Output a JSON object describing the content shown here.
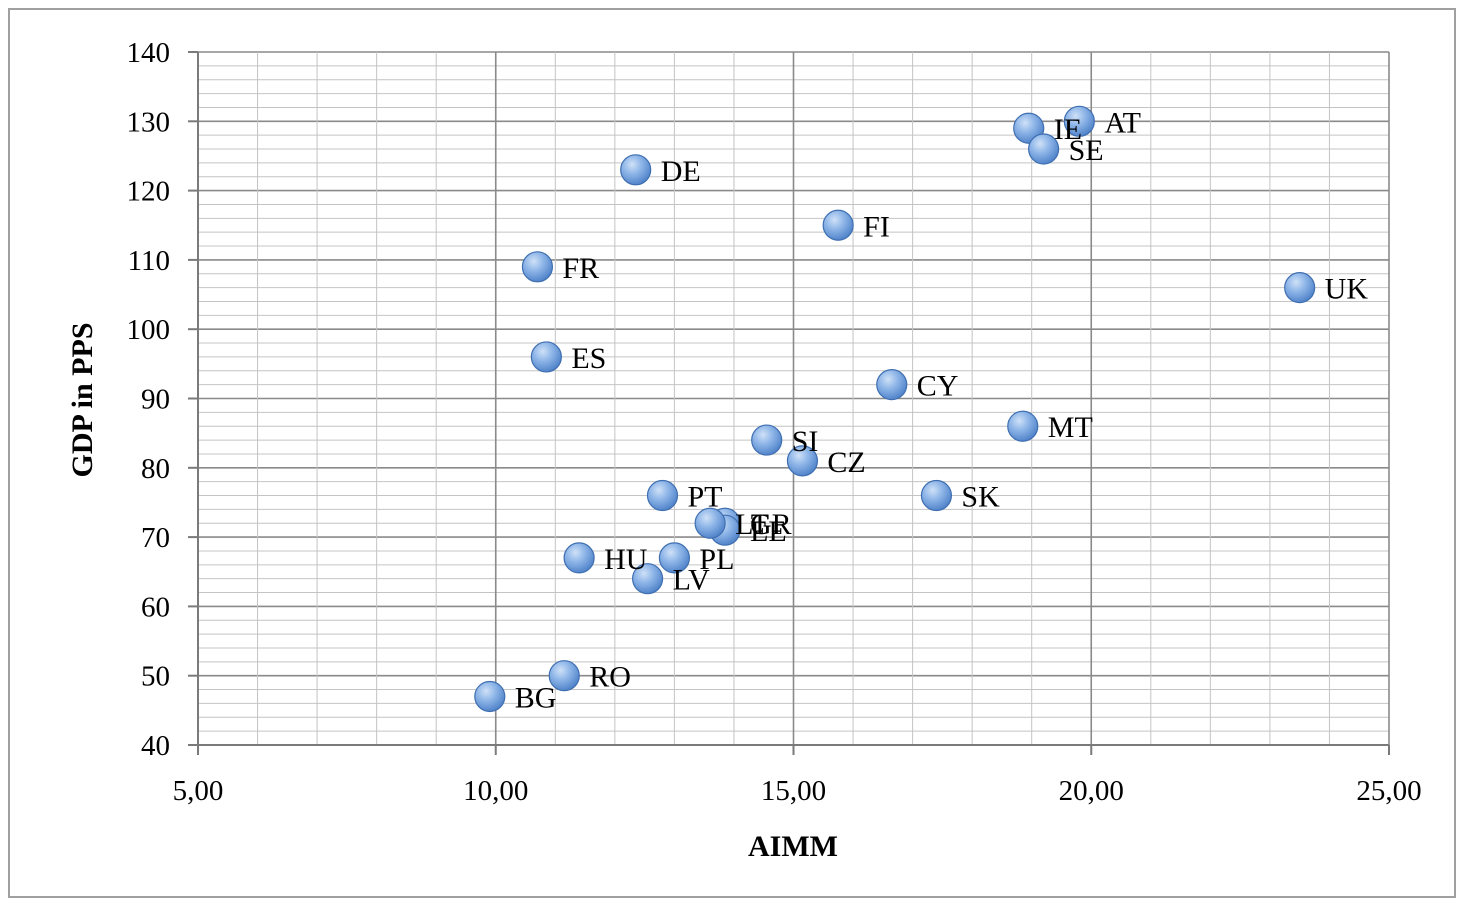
{
  "chart_data": {
    "type": "scatter",
    "xlabel": "AIMM",
    "ylabel": "GDP in PPS",
    "xlim": [
      5,
      25
    ],
    "ylim": [
      40,
      140
    ],
    "x_ticks": [
      5,
      10,
      15,
      20,
      25
    ],
    "x_tick_labels": [
      "5,00",
      "10,00",
      "15,00",
      "20,00",
      "25,00"
    ],
    "y_ticks": [
      40,
      50,
      60,
      70,
      80,
      90,
      100,
      110,
      120,
      130,
      140
    ],
    "y_tick_labels": [
      "40",
      "50",
      "60",
      "70",
      "80",
      "90",
      "100",
      "110",
      "120",
      "130",
      "140"
    ],
    "grid": true,
    "legend": "none",
    "marker_color": "#6f9fdc",
    "points": [
      {
        "label": "AT",
        "x": 19.8,
        "y": 130
      },
      {
        "label": "IE",
        "x": 18.95,
        "y": 129
      },
      {
        "label": "SE",
        "x": 19.2,
        "y": 126
      },
      {
        "label": "DE",
        "x": 12.35,
        "y": 123
      },
      {
        "label": "FI",
        "x": 15.75,
        "y": 115
      },
      {
        "label": "FR",
        "x": 10.7,
        "y": 109
      },
      {
        "label": "UK",
        "x": 23.5,
        "y": 106
      },
      {
        "label": "ES",
        "x": 10.85,
        "y": 96
      },
      {
        "label": "CY",
        "x": 16.65,
        "y": 92
      },
      {
        "label": "MT",
        "x": 18.85,
        "y": 86
      },
      {
        "label": "SI",
        "x": 14.55,
        "y": 84
      },
      {
        "label": "CZ",
        "x": 15.15,
        "y": 81
      },
      {
        "label": "PT",
        "x": 12.8,
        "y": 76
      },
      {
        "label": "SK",
        "x": 17.4,
        "y": 76
      },
      {
        "label": "GR",
        "x": 13.85,
        "y": 72
      },
      {
        "label": "EE",
        "x": 13.85,
        "y": 71
      },
      {
        "label": "LT",
        "x": 13.6,
        "y": 72
      },
      {
        "label": "HU",
        "x": 11.4,
        "y": 67
      },
      {
        "label": "PL",
        "x": 13.0,
        "y": 67
      },
      {
        "label": "LV",
        "x": 12.55,
        "y": 64
      },
      {
        "label": "RO",
        "x": 11.15,
        "y": 50
      },
      {
        "label": "BG",
        "x": 9.9,
        "y": 47
      }
    ]
  }
}
